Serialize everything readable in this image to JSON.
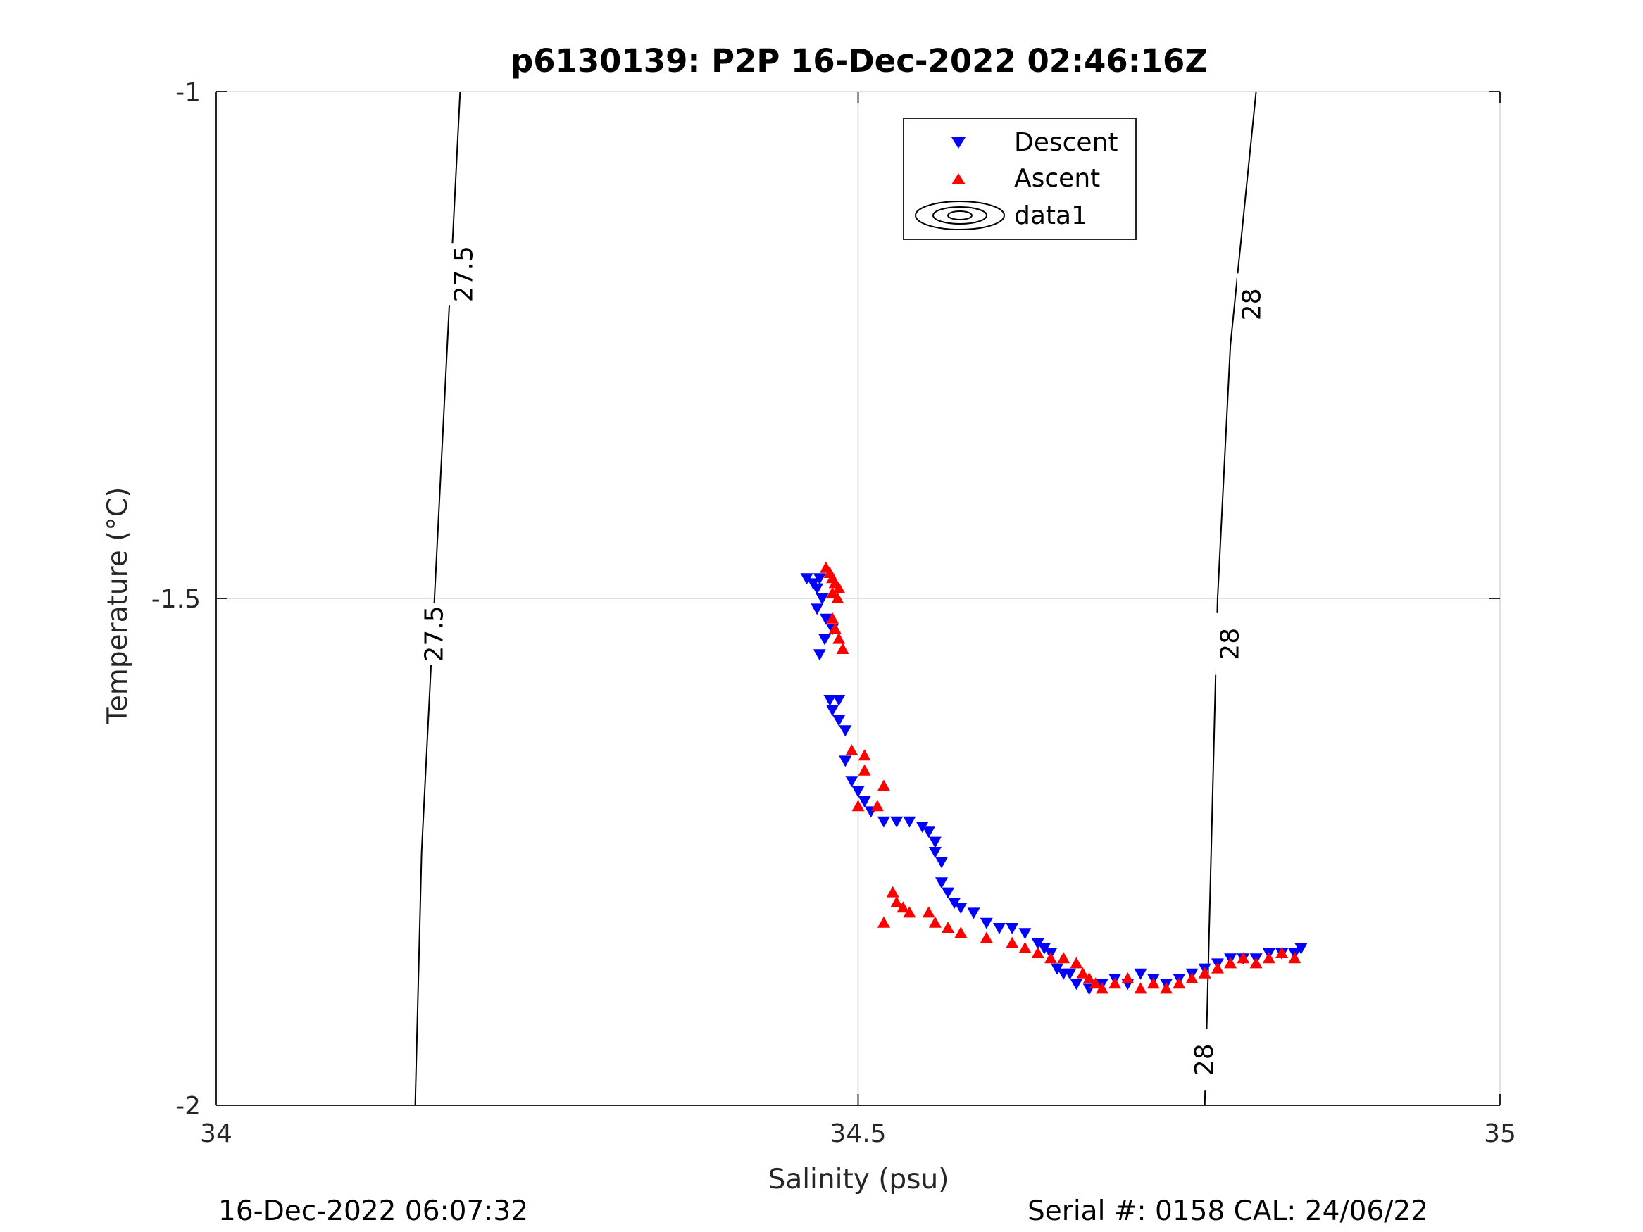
{
  "figure": {
    "title": "p6130139: P2P 16-Dec-2022 02:46:16Z",
    "footer_left": "16-Dec-2022 06:07:32",
    "footer_right": "Serial #: 0158  CAL: 24/06/22"
  },
  "chart_data": {
    "type": "scatter",
    "title": "p6130139: P2P 16-Dec-2022 02:46:16Z",
    "xlabel": "Salinity (psu)",
    "ylabel": "Temperature (°C)",
    "xlim": [
      34,
      35
    ],
    "ylim": [
      -2,
      -1
    ],
    "xticks": [
      34,
      34.5,
      35
    ],
    "xtick_labels": [
      "34",
      "34.5",
      "35"
    ],
    "yticks": [
      -2,
      -1.5,
      -1
    ],
    "ytick_labels": [
      "-2",
      "-1.5",
      "-1"
    ],
    "grid": true,
    "legend": {
      "position": "top-center",
      "entries": [
        "Descent",
        "Ascent",
        "data1"
      ]
    },
    "series": [
      {
        "name": "Descent",
        "marker": "triangle-down",
        "color": "#0000ff",
        "points": [
          [
            34.46,
            -1.48
          ],
          [
            34.465,
            -1.485
          ],
          [
            34.468,
            -1.49
          ],
          [
            34.47,
            -1.48
          ],
          [
            34.472,
            -1.5
          ],
          [
            34.468,
            -1.51
          ],
          [
            34.475,
            -1.52
          ],
          [
            34.48,
            -1.53
          ],
          [
            34.474,
            -1.54
          ],
          [
            34.47,
            -1.555
          ],
          [
            34.478,
            -1.6
          ],
          [
            34.485,
            -1.6
          ],
          [
            34.48,
            -1.61
          ],
          [
            34.485,
            -1.62
          ],
          [
            34.49,
            -1.63
          ],
          [
            34.49,
            -1.66
          ],
          [
            34.495,
            -1.68
          ],
          [
            34.5,
            -1.69
          ],
          [
            34.505,
            -1.7
          ],
          [
            34.51,
            -1.71
          ],
          [
            34.52,
            -1.72
          ],
          [
            34.53,
            -1.72
          ],
          [
            34.54,
            -1.72
          ],
          [
            34.55,
            -1.725
          ],
          [
            34.555,
            -1.73
          ],
          [
            34.56,
            -1.74
          ],
          [
            34.56,
            -1.75
          ],
          [
            34.565,
            -1.76
          ],
          [
            34.565,
            -1.78
          ],
          [
            34.57,
            -1.79
          ],
          [
            34.575,
            -1.8
          ],
          [
            34.58,
            -1.805
          ],
          [
            34.59,
            -1.81
          ],
          [
            34.6,
            -1.82
          ],
          [
            34.61,
            -1.825
          ],
          [
            34.62,
            -1.825
          ],
          [
            34.63,
            -1.83
          ],
          [
            34.64,
            -1.84
          ],
          [
            34.645,
            -1.845
          ],
          [
            34.65,
            -1.85
          ],
          [
            34.655,
            -1.865
          ],
          [
            34.66,
            -1.87
          ],
          [
            34.665,
            -1.87
          ],
          [
            34.67,
            -1.88
          ],
          [
            34.68,
            -1.885
          ],
          [
            34.69,
            -1.88
          ],
          [
            34.7,
            -1.875
          ],
          [
            34.71,
            -1.88
          ],
          [
            34.72,
            -1.87
          ],
          [
            34.73,
            -1.875
          ],
          [
            34.74,
            -1.88
          ],
          [
            34.75,
            -1.875
          ],
          [
            34.76,
            -1.87
          ],
          [
            34.77,
            -1.865
          ],
          [
            34.78,
            -1.86
          ],
          [
            34.79,
            -1.855
          ],
          [
            34.8,
            -1.855
          ],
          [
            34.81,
            -1.855
          ],
          [
            34.82,
            -1.85
          ],
          [
            34.83,
            -1.85
          ],
          [
            34.84,
            -1.85
          ],
          [
            34.845,
            -1.845
          ]
        ]
      },
      {
        "name": "Ascent",
        "marker": "triangle-up",
        "color": "#ff0000",
        "points": [
          [
            34.475,
            -1.47
          ],
          [
            34.478,
            -1.475
          ],
          [
            34.48,
            -1.48
          ],
          [
            34.482,
            -1.485
          ],
          [
            34.485,
            -1.49
          ],
          [
            34.48,
            -1.495
          ],
          [
            34.484,
            -1.5
          ],
          [
            34.48,
            -1.52
          ],
          [
            34.482,
            -1.53
          ],
          [
            34.485,
            -1.54
          ],
          [
            34.488,
            -1.55
          ],
          [
            34.495,
            -1.65
          ],
          [
            34.505,
            -1.67
          ],
          [
            34.5,
            -1.705
          ],
          [
            34.52,
            -1.82
          ],
          [
            34.527,
            -1.79
          ],
          [
            34.53,
            -1.8
          ],
          [
            34.535,
            -1.805
          ],
          [
            34.54,
            -1.81
          ],
          [
            34.52,
            -1.685
          ],
          [
            34.515,
            -1.705
          ],
          [
            34.505,
            -1.655
          ],
          [
            34.555,
            -1.81
          ],
          [
            34.56,
            -1.82
          ],
          [
            34.57,
            -1.825
          ],
          [
            34.58,
            -1.83
          ],
          [
            34.6,
            -1.835
          ],
          [
            34.62,
            -1.84
          ],
          [
            34.63,
            -1.845
          ],
          [
            34.64,
            -1.85
          ],
          [
            34.65,
            -1.855
          ],
          [
            34.66,
            -1.855
          ],
          [
            34.67,
            -1.86
          ],
          [
            34.675,
            -1.87
          ],
          [
            34.68,
            -1.875
          ],
          [
            34.685,
            -1.88
          ],
          [
            34.69,
            -1.885
          ],
          [
            34.7,
            -1.88
          ],
          [
            34.71,
            -1.875
          ],
          [
            34.72,
            -1.885
          ],
          [
            34.73,
            -1.88
          ],
          [
            34.74,
            -1.885
          ],
          [
            34.75,
            -1.88
          ],
          [
            34.76,
            -1.875
          ],
          [
            34.77,
            -1.87
          ],
          [
            34.78,
            -1.865
          ],
          [
            34.79,
            -1.86
          ],
          [
            34.8,
            -1.855
          ],
          [
            34.81,
            -1.86
          ],
          [
            34.82,
            -1.855
          ],
          [
            34.83,
            -1.85
          ],
          [
            34.84,
            -1.855
          ]
        ]
      }
    ],
    "contours": [
      {
        "name": "data1",
        "label": "27.5",
        "points": [
          [
            34.155,
            -2
          ],
          [
            34.16,
            -1.75
          ],
          [
            34.17,
            -1.5
          ],
          [
            34.18,
            -1.25
          ],
          [
            34.19,
            -1
          ]
        ],
        "labels_at": [
          [
            34.17,
            -1.535
          ],
          [
            34.193,
            -1.18
          ]
        ]
      },
      {
        "name": "data1",
        "label": "28",
        "points": [
          [
            34.77,
            -2
          ],
          [
            34.775,
            -1.75
          ],
          [
            34.78,
            -1.5
          ],
          [
            34.79,
            -1.25
          ],
          [
            34.81,
            -1
          ]
        ],
        "labels_at": [
          [
            34.77,
            -1.955
          ],
          [
            34.79,
            -1.545
          ],
          [
            34.807,
            -1.21
          ]
        ]
      }
    ]
  }
}
